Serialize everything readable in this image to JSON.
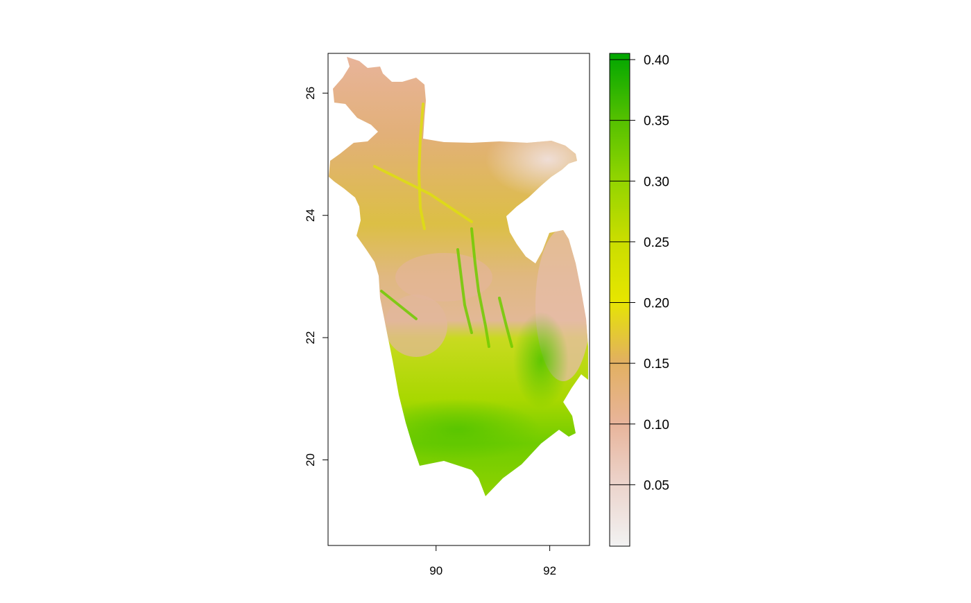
{
  "map": {
    "x_axis": {
      "ticks": [
        {
          "value": 90,
          "label": "90"
        },
        {
          "value": 92,
          "label": "92"
        }
      ]
    },
    "y_axis": {
      "ticks": [
        {
          "value": 20,
          "label": "20"
        },
        {
          "value": 22,
          "label": "22"
        },
        {
          "value": 24,
          "label": "24"
        },
        {
          "value": 26,
          "label": "26"
        }
      ]
    },
    "extent": {
      "lon_min": 88.1,
      "lon_max": 92.7,
      "lat_min": 18.6,
      "lat_max": 26.65
    },
    "colors": {
      "low": "#f2f2f2",
      "pink": "#e8b49a",
      "orange": "#e0b050",
      "yellow": "#e6e600",
      "light_green": "#b8d800",
      "green": "#66cc00",
      "dark_green": "#00a600"
    }
  },
  "legend": {
    "min": 0.0,
    "max": 0.4,
    "ticks": [
      {
        "value": 0.05,
        "label": "0.05"
      },
      {
        "value": 0.1,
        "label": "0.10"
      },
      {
        "value": 0.15,
        "label": "0.15"
      },
      {
        "value": 0.2,
        "label": "0.20"
      },
      {
        "value": 0.25,
        "label": "0.25"
      },
      {
        "value": 0.3,
        "label": "0.30"
      },
      {
        "value": 0.35,
        "label": "0.35"
      },
      {
        "value": 0.4,
        "label": "0.40"
      }
    ]
  }
}
